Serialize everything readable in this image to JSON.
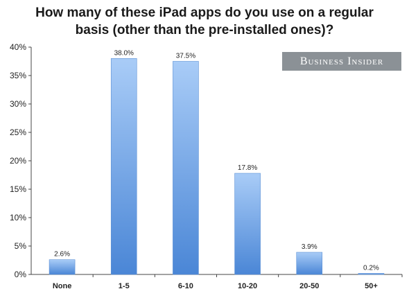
{
  "chart_data": {
    "type": "bar",
    "title_lines": [
      "How many of these iPad apps do you use on a regular",
      "basis (other than the pre-installed ones)?"
    ],
    "categories": [
      "None",
      "1-5",
      "6-10",
      "10-20",
      "20-50",
      "50+"
    ],
    "values": [
      2.6,
      38.0,
      37.5,
      17.8,
      3.9,
      0.2
    ],
    "data_labels": [
      "2.6%",
      "38.0%",
      "37.5%",
      "17.8%",
      "3.9%",
      "0.2%"
    ],
    "ylim": [
      0,
      40
    ],
    "yticks": [
      0,
      5,
      10,
      15,
      20,
      25,
      30,
      35,
      40
    ],
    "ytick_labels": [
      "0%",
      "5%",
      "10%",
      "15%",
      "20%",
      "25%",
      "30%",
      "35%",
      "40%"
    ],
    "xlabel": "",
    "ylabel": "",
    "grid": false,
    "bar_color_top": "#a9ccf7",
    "bar_color_bottom": "#4a86d6"
  },
  "brand": {
    "logo_text": "Business Insider"
  }
}
